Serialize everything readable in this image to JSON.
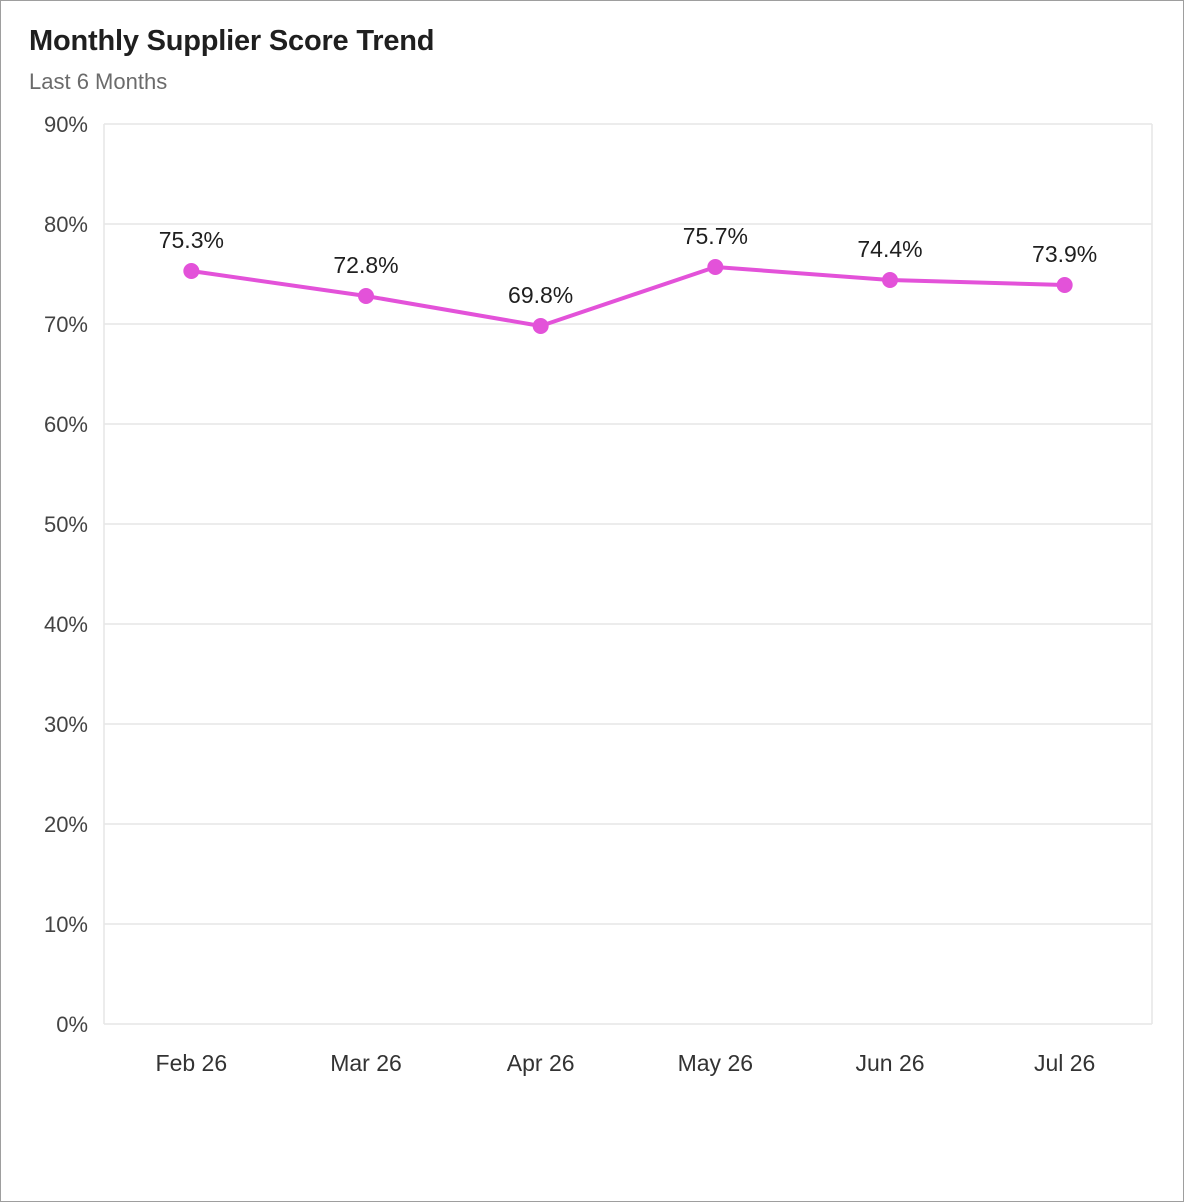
{
  "card": {
    "title": "Monthly Supplier Score Trend",
    "subtitle": "Last 6 Months"
  },
  "chart_data": {
    "type": "line",
    "title": "Monthly Supplier Score Trend",
    "subtitle": "Last 6 Months",
    "categories": [
      "Feb 26",
      "Mar 26",
      "Apr 26",
      "May 26",
      "Jun 26",
      "Jul 26"
    ],
    "series": [
      {
        "values": [
          75.3,
          72.8,
          69.8,
          75.7,
          74.4,
          73.9
        ],
        "labels": [
          "75.3%",
          "72.8%",
          "69.8%",
          "75.7%",
          "74.4%",
          "73.9%"
        ],
        "color": "#e352d9"
      }
    ],
    "ylim": [
      0,
      90
    ],
    "yticks": [
      0,
      10,
      20,
      30,
      40,
      50,
      60,
      70,
      80,
      90
    ],
    "ytick_labels": [
      "0%",
      "10%",
      "20%",
      "30%",
      "40%",
      "50%",
      "60%",
      "70%",
      "80%",
      "90%"
    ],
    "grid": true,
    "legend": "none",
    "xlabel": "",
    "ylabel": ""
  },
  "colors": {
    "line": "#e352d9",
    "grid": "#e6e6e6",
    "border": "#9e9e9e"
  }
}
